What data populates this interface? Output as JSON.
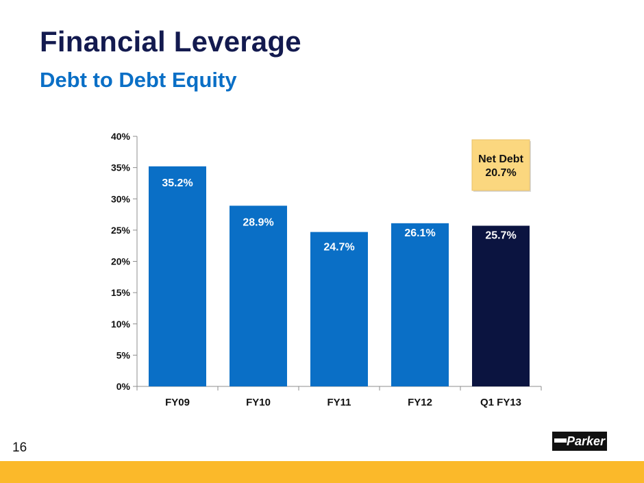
{
  "header": {
    "title": "Financial Leverage",
    "subtitle": "Debt to Debt Equity"
  },
  "chart_data": {
    "type": "bar",
    "title": "",
    "xlabel": "",
    "ylabel": "",
    "categories": [
      "FY09",
      "FY10",
      "FY11",
      "FY12",
      "Q1 FY13"
    ],
    "values": [
      35.2,
      28.9,
      24.7,
      26.1,
      25.7
    ],
    "data_labels": [
      "35.2%",
      "28.9%",
      "24.7%",
      "26.1%",
      "25.7%"
    ],
    "ylim": [
      0,
      40
    ],
    "yticks": [
      "0%",
      "5%",
      "10%",
      "15%",
      "20%",
      "25%",
      "30%",
      "35%",
      "40%"
    ],
    "grid": false,
    "bar_colors": [
      "#0a6fc6",
      "#0a6fc6",
      "#0a6fc6",
      "#0a6fc6",
      "#0b1440"
    ],
    "annotation": {
      "text_line1": "Net Debt",
      "text_line2": "20.7%",
      "fill": "#fbd77f"
    }
  },
  "footer": {
    "page_number": "16",
    "logo_text": "Parker",
    "band_color": "#fbb92a"
  }
}
